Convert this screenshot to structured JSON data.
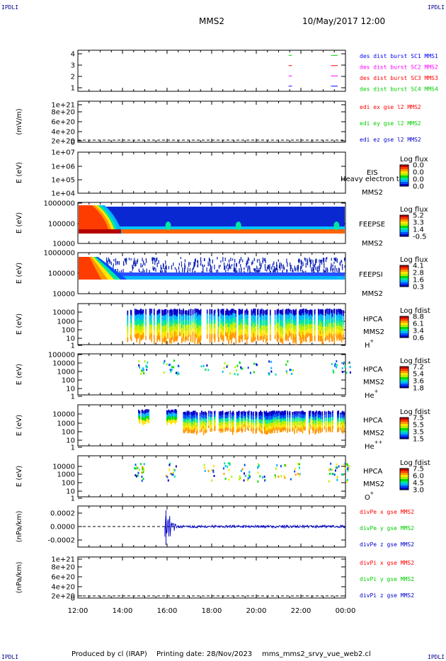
{
  "header": {
    "corner_tag": "IPDLI",
    "spacecraft": "MMS2",
    "datetime": "10/May/2017 12:00"
  },
  "footer": {
    "produced_by": "Produced by cl (IRAP)",
    "printing_date": "Printing date: 28/Nov/2023",
    "filename": "mms_mms2_srvy_vue_web2.cl"
  },
  "time_axis": {
    "ticks": [
      "12:00",
      "14:00",
      "16:00",
      "18:00",
      "20:00",
      "22:00",
      "00:00"
    ],
    "start_hour": 12,
    "end_hour": 24
  },
  "chart_data": [
    {
      "type": "line",
      "name": "burst",
      "yticks": [
        "4",
        "3",
        "2",
        "1"
      ],
      "ylim": [
        0.5,
        4.5
      ],
      "legend": [
        "des dist burst SC1 MMS1",
        "des dist burst SC2 MMS2",
        "des dist burst SC3 MMS3",
        "des dist burst SC4 MMS4"
      ],
      "legend_colors": [
        "#0000ff",
        "#ff00ff",
        "#ff0000",
        "#00cc00"
      ],
      "segments": [
        {
          "level": 4,
          "color": "#00cc00",
          "x": [
            [
              21.45,
              21.6
            ],
            [
              23.35,
              23.65
            ]
          ]
        },
        {
          "level": 3,
          "color": "#ff0000",
          "x": [
            [
              21.45,
              21.6
            ],
            [
              23.35,
              23.65
            ]
          ]
        },
        {
          "level": 2,
          "color": "#ff00ff",
          "x": [
            [
              21.45,
              21.6
            ],
            [
              23.35,
              23.65
            ]
          ]
        },
        {
          "level": 1,
          "color": "#0000ff",
          "x": [
            [
              21.45,
              21.6
            ],
            [
              23.35,
              23.65
            ]
          ]
        }
      ]
    },
    {
      "type": "line",
      "name": "edi",
      "ylabel": "(mV/m)",
      "yticks": [
        "1e+21",
        "8e+20",
        "6e+20",
        "4e+20",
        "2e+20",
        "0"
      ],
      "ylim": [
        0,
        1e+21
      ],
      "legend": [
        "edi ex gse l2 MMS2",
        "edi ey gse l2 MMS2",
        "edi ez gse l2 MMS2"
      ],
      "legend_colors": [
        "#ff0000",
        "#00cc00",
        "#0000cc"
      ],
      "zero_line": true
    },
    {
      "type": "heatmap",
      "name": "eis",
      "ylabel": "E (eV)",
      "yticks": [
        "1e+07",
        "1e+06",
        "1e+05",
        "1e+04"
      ],
      "ylim": [
        10000,
        10000000
      ],
      "right_labels": [
        "EIS",
        "MMS2"
      ],
      "overlay_label": "Heavy electron tof",
      "colorbar_title": "Log flux",
      "colorbar_ticks": [
        "0.0",
        "0.0",
        "0.0",
        "0.0"
      ]
    },
    {
      "type": "heatmap",
      "name": "feepse",
      "ylabel": "E (eV)",
      "yticks": [
        "1000000",
        "100000",
        "10000"
      ],
      "ylim": [
        10000,
        1000000
      ],
      "right_labels": [
        "FEEPSE",
        "MMS2"
      ],
      "colorbar_title": "Log flux",
      "colorbar_ticks": [
        "5.2",
        "3.3",
        "1.4",
        "-0.5"
      ]
    },
    {
      "type": "heatmap",
      "name": "feepsi",
      "ylabel": "E (eV)",
      "yticks": [
        "1000000",
        "100000",
        "10000"
      ],
      "ylim": [
        10000,
        1000000
      ],
      "right_labels": [
        "FEEPSI",
        "MMS2"
      ],
      "colorbar_title": "Log flux",
      "colorbar_ticks": [
        "4.1",
        "2.8",
        "1.6",
        "0.3"
      ]
    },
    {
      "type": "heatmap",
      "name": "hpca-h",
      "ylabel": "E (eV)",
      "yticks": [
        "10000",
        "1000",
        "100",
        "10",
        "1"
      ],
      "ylim": [
        1,
        40000
      ],
      "right_labels": [
        "HPCA",
        "MMS2",
        "H",
        "+"
      ],
      "colorbar_title": "Log fdist",
      "colorbar_ticks": [
        "8.8",
        "6.1",
        "3.4",
        "0.6"
      ]
    },
    {
      "type": "heatmap",
      "name": "hpca-he",
      "ylabel": "E (eV)",
      "yticks": [
        "100000",
        "10000",
        "1000",
        "100",
        "10",
        "1"
      ],
      "ylim": [
        1,
        100000
      ],
      "right_labels": [
        "HPCA",
        "MMS2",
        "He",
        "+"
      ],
      "colorbar_title": "Log fdist",
      "colorbar_ticks": [
        "7.2",
        "5.4",
        "3.6",
        "1.8"
      ]
    },
    {
      "type": "heatmap",
      "name": "hpca-hepp",
      "ylabel": "E (eV)",
      "yticks": [
        "10000",
        "1000",
        "100",
        "10",
        "1"
      ],
      "ylim": [
        1,
        40000
      ],
      "right_labels": [
        "HPCA",
        "MMS2",
        "He",
        "++"
      ],
      "colorbar_title": "Log fdist",
      "colorbar_ticks": [
        "7.5",
        "5.5",
        "3.5",
        "1.5"
      ]
    },
    {
      "type": "heatmap",
      "name": "hpca-o",
      "ylabel": "E (eV)",
      "yticks": [
        "10000",
        "1000",
        "100",
        "10",
        "1"
      ],
      "ylim": [
        1,
        40000
      ],
      "right_labels": [
        "HPCA",
        "MMS2",
        "O",
        "+"
      ],
      "colorbar_title": "Log fdist",
      "colorbar_ticks": [
        "7.5",
        "6.0",
        "4.5",
        "3.0"
      ]
    },
    {
      "type": "line",
      "name": "divpe",
      "ylabel": "(nPa/km)",
      "yticks": [
        "0.0002",
        "0.0000",
        "-0.0002"
      ],
      "ylim": [
        -0.0003,
        0.00025
      ],
      "legend": [
        "divPe x gse MMS2",
        "divPe y gse MMS2",
        "divPe z gse MMS2"
      ],
      "legend_colors": [
        "#ff0000",
        "#00cc00",
        "#0000cc"
      ],
      "zero_line": true
    },
    {
      "type": "line",
      "name": "divpi",
      "ylabel": "(nPa/km)",
      "yticks": [
        "1e+21",
        "8e+20",
        "6e+20",
        "4e+20",
        "2e+20",
        "0"
      ],
      "ylim": [
        0,
        1e+21
      ],
      "legend": [
        "divPi x gse MMS2",
        "divPi y gse MMS2",
        "divPi z gse MMS2"
      ],
      "legend_colors": [
        "#ff0000",
        "#00cc00",
        "#0000cc"
      ],
      "zero_line": true
    }
  ]
}
